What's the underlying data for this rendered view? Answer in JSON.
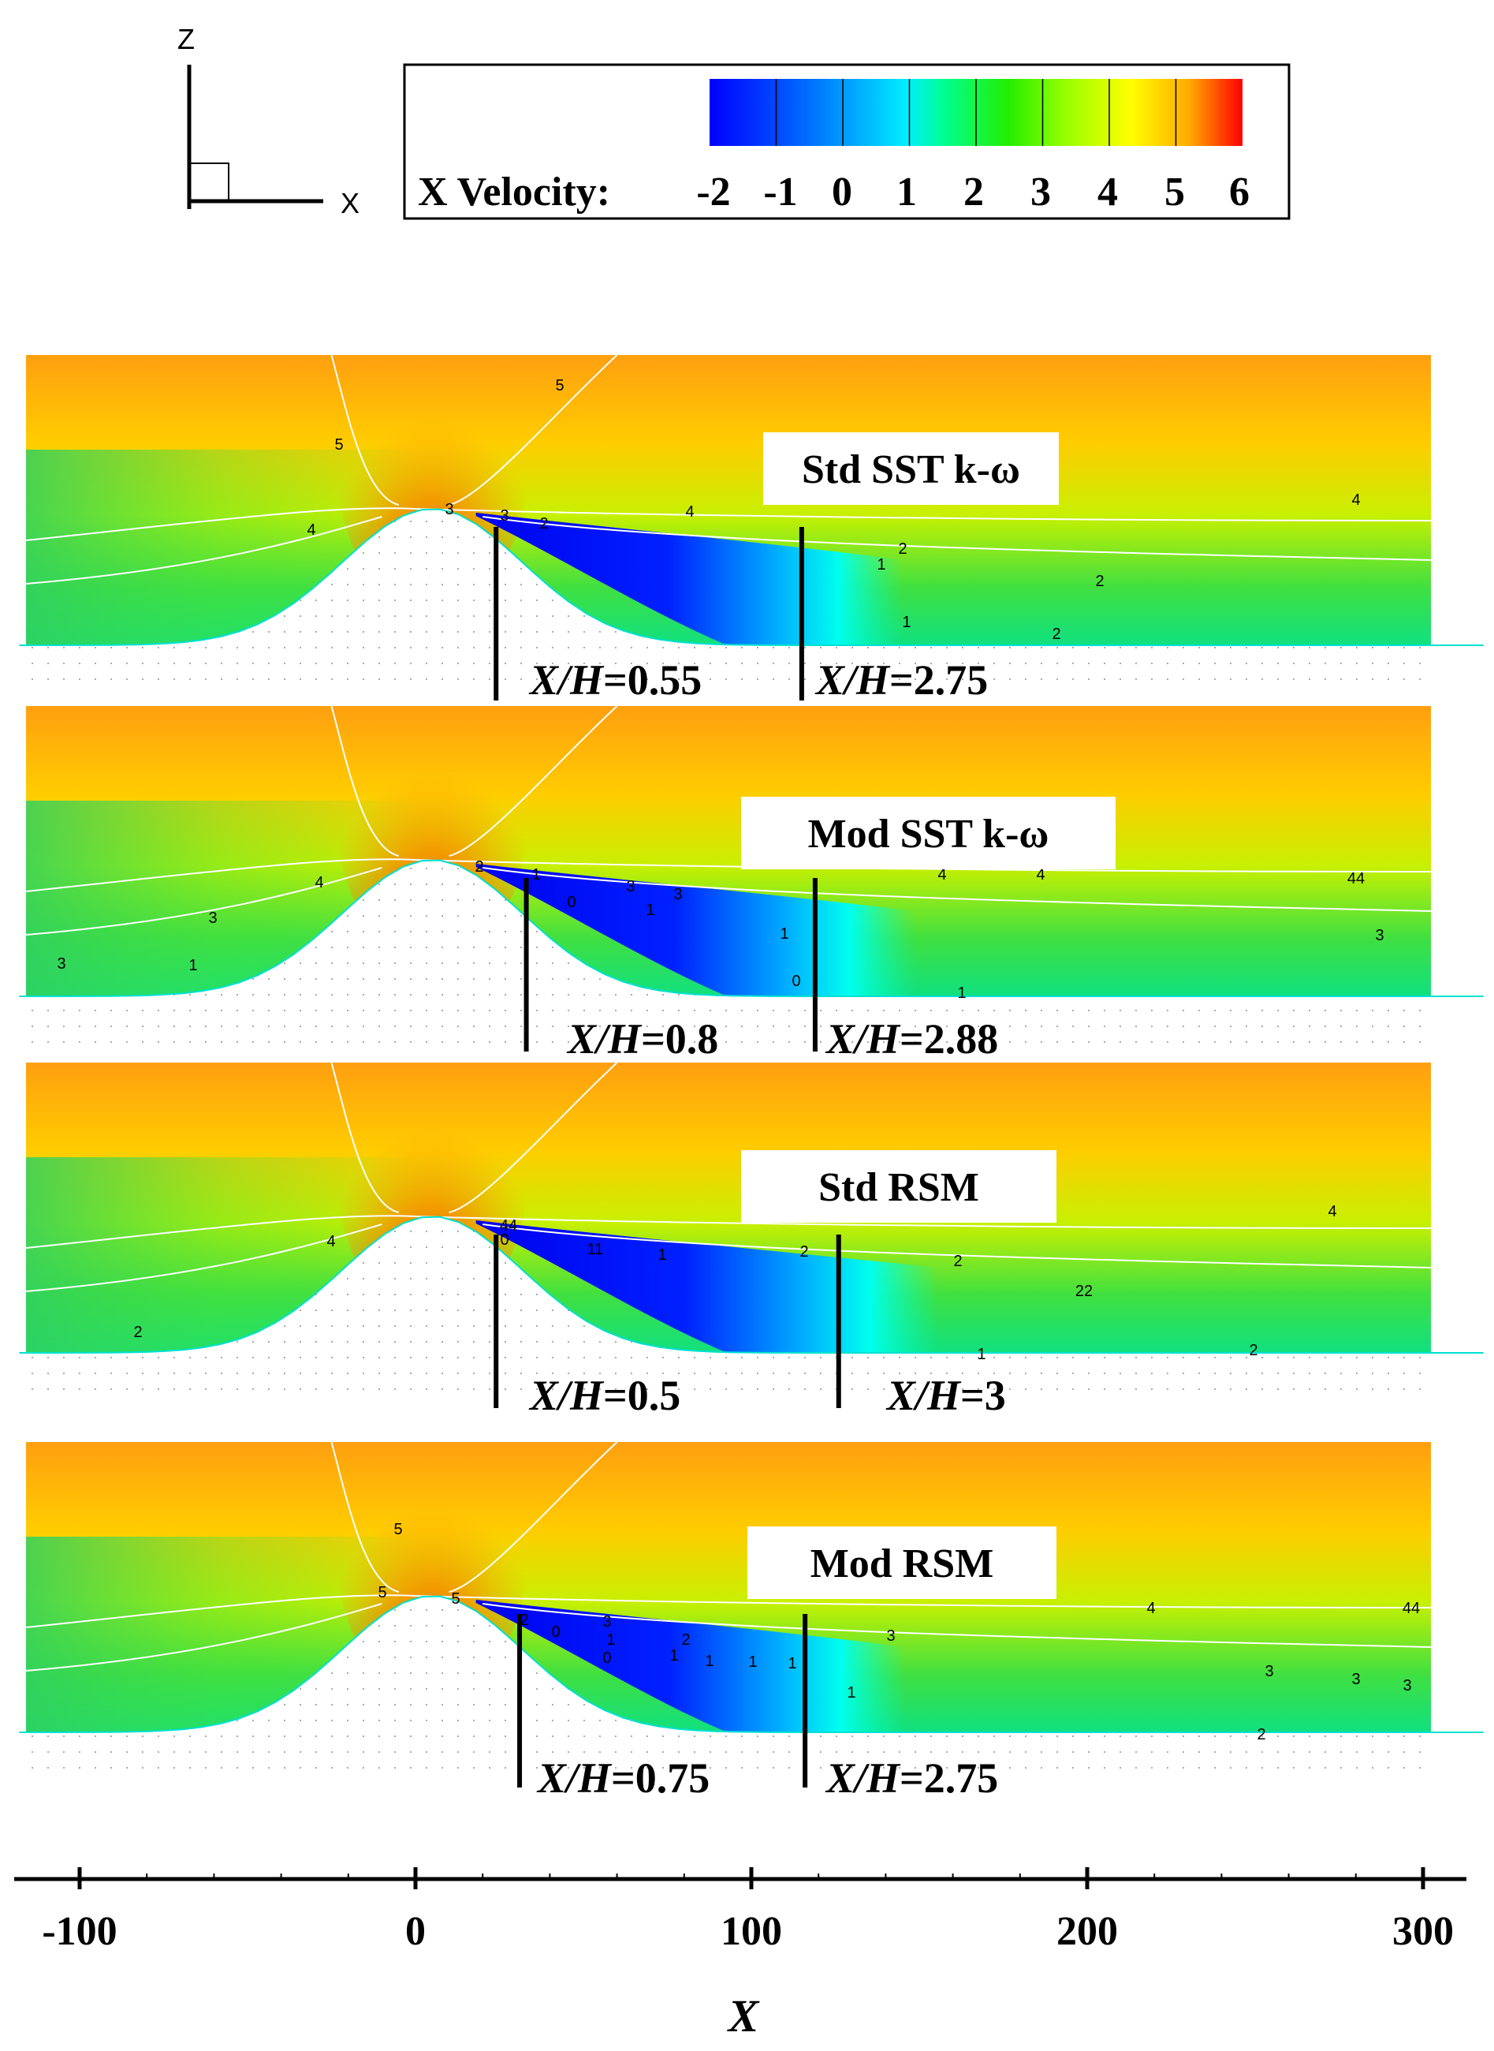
{
  "axes_triad": {
    "vertical": "Z",
    "horizontal": "X"
  },
  "legend": {
    "label": "X Velocity:",
    "levels": [
      "-2",
      "-1",
      "0",
      "1",
      "2",
      "3",
      "4",
      "5",
      "6"
    ],
    "colors": [
      "#0000ff",
      "#0044ff",
      "#0099ff",
      "#00eeff",
      "#00ff80",
      "#22ee00",
      "#99ff00",
      "#ffff00",
      "#ffaa00",
      "#ff0000"
    ]
  },
  "chart_data": {
    "type": "heatmap",
    "variable": "X Velocity",
    "colorbar_range": [
      -2,
      6
    ],
    "xlabel": "X",
    "xlim": [
      -118,
      318
    ],
    "xticks": [
      "-100",
      "0",
      "100",
      "200",
      "300"
    ],
    "xtick_values": [
      -100,
      0,
      100,
      200,
      300
    ],
    "grid": true,
    "panels": [
      {
        "name": "Std SST k-ω",
        "markers": [
          {
            "label_italic": "X/H",
            "label_value": "=0.55",
            "x": 24
          },
          {
            "label_italic": "X/H",
            "label_value": "=2.75",
            "x": 115
          }
        ],
        "contour_labels": [
          "5",
          "5",
          "3",
          "3",
          "2",
          "4",
          "4",
          "4",
          "2",
          "1",
          "1",
          "2",
          "2"
        ]
      },
      {
        "name": "Mod SST k-ω",
        "markers": [
          {
            "label_italic": "X/H",
            "label_value": "=0.8",
            "x": 33
          },
          {
            "label_italic": "X/H",
            "label_value": "=2.88",
            "x": 119
          }
        ],
        "contour_labels": [
          "4",
          "2",
          "1",
          "0",
          "3",
          "3",
          "1",
          "4",
          "4",
          "44",
          "3",
          "3",
          "1",
          "1",
          "0",
          "1",
          "3"
        ]
      },
      {
        "name": "Std RSM",
        "markers": [
          {
            "label_italic": "X/H",
            "label_value": "=0.5",
            "x": 24
          },
          {
            "label_italic": "X/H",
            "label_value": "=3",
            "x": 126
          }
        ],
        "contour_labels": [
          "4",
          "44",
          "0",
          "11",
          "1",
          "2",
          "2",
          "22",
          "4",
          "1",
          "2",
          "2"
        ]
      },
      {
        "name": "Mod RSM",
        "markers": [
          {
            "label_italic": "X/H",
            "label_value": "=0.75",
            "x": 31
          },
          {
            "label_italic": "X/H",
            "label_value": "=2.75",
            "x": 116
          }
        ],
        "contour_labels": [
          "5",
          "5",
          "5",
          "2",
          "0",
          "3",
          "1",
          "0",
          "1",
          "2",
          "1",
          "1",
          "1",
          "1",
          "3",
          "4",
          "44",
          "3",
          "3",
          "3",
          "2"
        ]
      }
    ]
  }
}
